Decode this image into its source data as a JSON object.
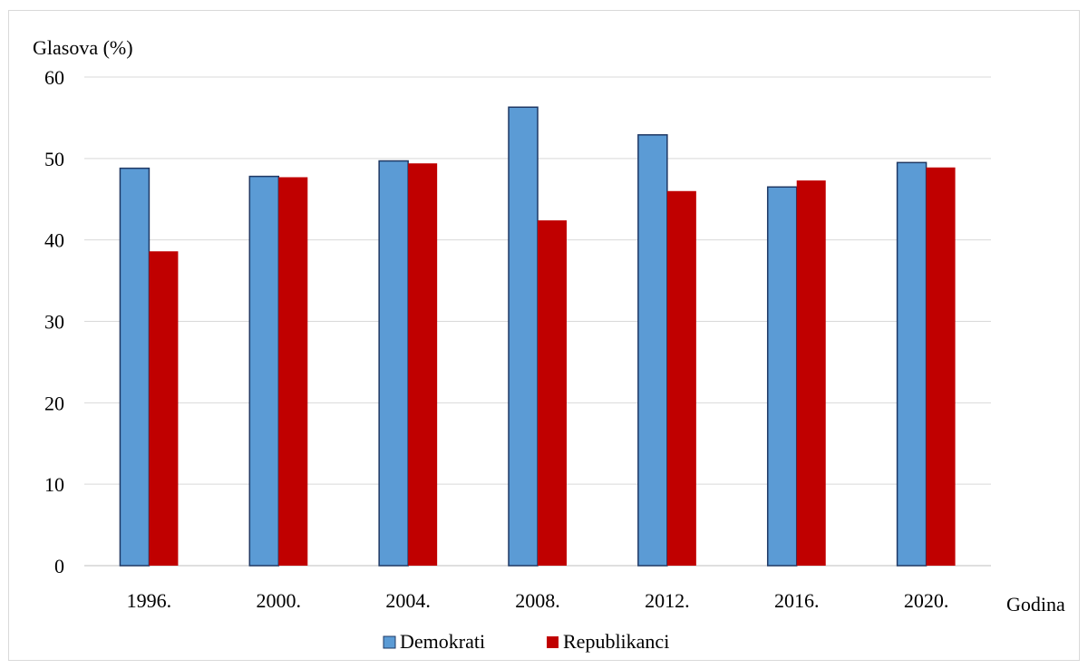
{
  "chart_data": {
    "type": "bar",
    "title": "",
    "ylabel": "Glasova (%)",
    "xlabel": "Godina",
    "categories": [
      "1996.",
      "2000.",
      "2004.",
      "2008.",
      "2012.",
      "2016.",
      "2020."
    ],
    "ylim": [
      0,
      60
    ],
    "yticks": [
      0,
      10,
      20,
      30,
      40,
      50,
      60
    ],
    "grid": true,
    "legend_position": "bottom",
    "series": [
      {
        "name": "Demokrati",
        "color": "#5b9bd5",
        "values": [
          48.8,
          47.8,
          49.7,
          56.3,
          52.9,
          46.5,
          49.5
        ]
      },
      {
        "name": "Republikanci",
        "color": "#c00000",
        "values": [
          38.6,
          47.7,
          49.4,
          42.4,
          46.0,
          47.3,
          48.9
        ]
      }
    ]
  }
}
